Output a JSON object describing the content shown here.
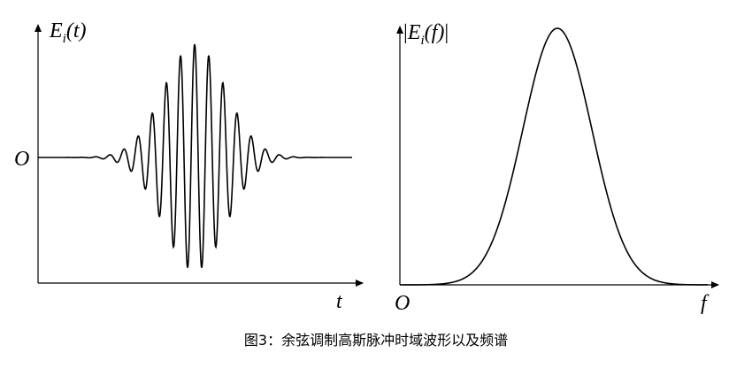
{
  "left": {
    "ylabel": {
      "symbol": "E",
      "subscript": "i",
      "argument": "(t)"
    },
    "origin": "O",
    "xlabel": "t"
  },
  "right": {
    "ylabel": {
      "open": "|",
      "symbol": "E",
      "subscript": "i",
      "argument": "(f)",
      "close": "|"
    },
    "origin": "O",
    "xlabel": "f"
  },
  "caption": "图3：余弦调制高斯脉冲时域波形以及频谱"
}
